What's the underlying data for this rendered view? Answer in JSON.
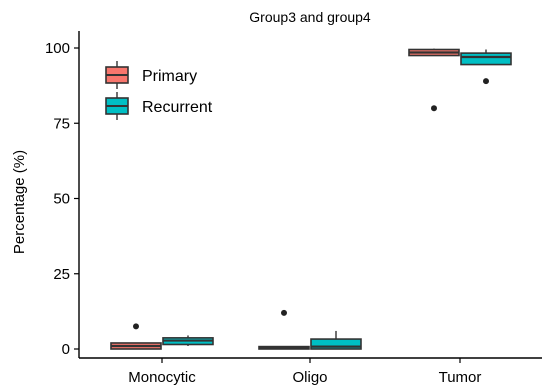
{
  "chart_data": {
    "type": "boxplot",
    "title": "Group3 and group4",
    "xlabel": "",
    "ylabel": "Percentage (%)",
    "categories": [
      "Monocytic",
      "Oligo",
      "Tumor"
    ],
    "ylim": [
      -2,
      105
    ],
    "yticks": [
      0,
      25,
      50,
      75,
      100
    ],
    "grid": false,
    "legend_position": "top-left",
    "series": [
      {
        "name": "Primary",
        "color": "#F8766D",
        "boxes": [
          {
            "category": "Monocytic",
            "whisker_low": 0,
            "q1": 0,
            "median": 1,
            "q3": 2,
            "whisker_high": 2,
            "outliers": [
              7.5
            ]
          },
          {
            "category": "Oligo",
            "whisker_low": 0,
            "q1": 0,
            "median": 0.5,
            "q3": 0.8,
            "whisker_high": 0.8,
            "outliers": [
              12
            ]
          },
          {
            "category": "Tumor",
            "whisker_low": 97.5,
            "q1": 97.5,
            "median": 98.5,
            "q3": 99.5,
            "whisker_high": 99.8,
            "outliers": [
              80
            ]
          }
        ]
      },
      {
        "name": "Recurrent",
        "color": "#00BFC4",
        "boxes": [
          {
            "category": "Monocytic",
            "whisker_low": 1,
            "q1": 1.5,
            "median": 2.8,
            "q3": 3.7,
            "whisker_high": 4.5,
            "outliers": []
          },
          {
            "category": "Oligo",
            "whisker_low": 0,
            "q1": 0,
            "median": 0.8,
            "q3": 3.3,
            "whisker_high": 6,
            "outliers": []
          },
          {
            "category": "Tumor",
            "whisker_low": 94.5,
            "q1": 94.5,
            "median": 97,
            "q3": 98.3,
            "whisker_high": 99.5,
            "outliers": [
              89
            ]
          }
        ]
      }
    ]
  }
}
